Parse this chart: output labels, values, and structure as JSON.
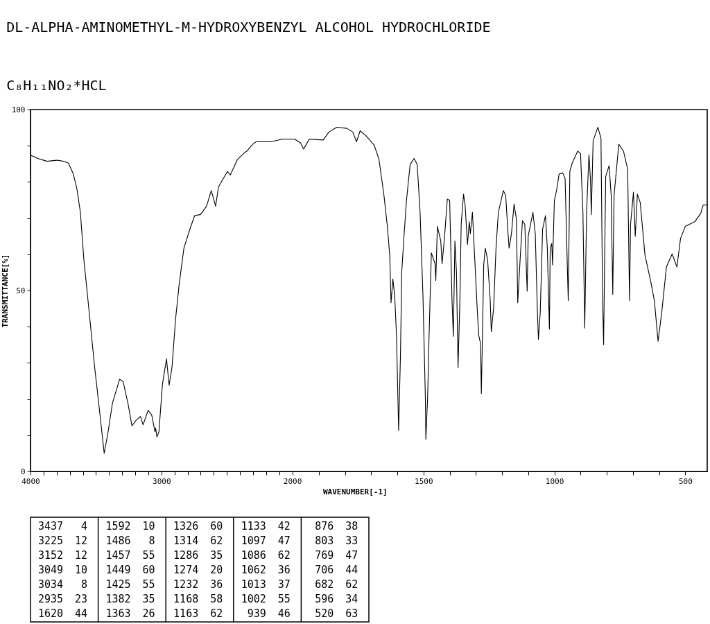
{
  "chart_data": [
    {
      "type": "line",
      "title": "DL-ALPHA-AMINOMETHYL-M-HYDROXYBENZYL ALCOHOL HYDROCHLORIDE",
      "subtitle": "C₈H₁₁NO₂*HCL",
      "ylabel": "TRANSMITTANCE[%]",
      "xlim": [
        4000,
        2000
      ],
      "ylim": [
        0,
        100
      ],
      "xticks": [
        4000,
        {
          "value": 3900,
          "label": null
        },
        {
          "value": 3800,
          "label": null
        },
        {
          "value": 3700,
          "label": null
        },
        {
          "value": 3600,
          "label": null
        },
        {
          "value": 3500,
          "label": null
        },
        {
          "value": 3400,
          "label": null
        },
        {
          "value": 3300,
          "label": null
        },
        {
          "value": 3200,
          "label": null
        },
        {
          "value": 3100,
          "label": null
        },
        3000,
        {
          "value": 2900,
          "label": null
        },
        {
          "value": 2800,
          "label": null
        },
        {
          "value": 2700,
          "label": null
        },
        {
          "value": 2600,
          "label": null
        },
        {
          "value": 2500,
          "label": null
        },
        {
          "value": 2400,
          "label": null
        },
        {
          "value": 2300,
          "label": null
        },
        {
          "value": 2200,
          "label": null
        },
        {
          "value": 2100,
          "label": null
        },
        2000
      ],
      "yticks": [
        0,
        {
          "value": 10,
          "label": null
        },
        {
          "value": 20,
          "label": null
        },
        {
          "value": 30,
          "label": null
        },
        {
          "value": 40,
          "label": null
        },
        50,
        {
          "value": 60,
          "label": null
        },
        {
          "value": 70,
          "label": null
        },
        {
          "value": 80,
          "label": null
        },
        {
          "value": 90,
          "label": null
        },
        100
      ],
      "grid": false,
      "series": [
        {
          "color": "#000000",
          "x": [
            4000,
            3946,
            3873,
            3800,
            3747,
            3710,
            3673,
            3646,
            3619,
            3592,
            3555,
            3510,
            3473,
            3437,
            3410,
            3374,
            3319,
            3292,
            3256,
            3225,
            3192,
            3161,
            3140,
            3101,
            3074,
            3049,
            3044,
            3034,
            3019,
            2992,
            2961,
            2941,
            2919,
            2892,
            2864,
            2828,
            2782,
            2746,
            2701,
            2655,
            2619,
            2601,
            2586,
            2564,
            2528,
            2495,
            2474,
            2419,
            2364,
            2348,
            2300,
            2276,
            2167,
            2076,
            2000
          ],
          "values": [
            87.4,
            86.5,
            85.7,
            86.0,
            85.7,
            85.2,
            82.2,
            78.2,
            71.6,
            58.4,
            45.2,
            28.8,
            16.9,
            5.0,
            10.3,
            18.9,
            25.5,
            24.8,
            18.9,
            12.6,
            14.2,
            15.2,
            12.9,
            16.9,
            15.6,
            11.0,
            12.0,
            9.5,
            10.9,
            24.1,
            31.1,
            23.8,
            28.8,
            42.0,
            51.8,
            61.7,
            67.0,
            70.7,
            71.0,
            73.3,
            77.6,
            75.3,
            73.3,
            78.6,
            80.9,
            82.9,
            81.9,
            86.2,
            88.1,
            88.5,
            90.5,
            91.1,
            91.1,
            91.8,
            91.8
          ]
        }
      ],
      "annotations": [
        "3437",
        "4",
        "3225",
        "12",
        "3152",
        "12",
        "3049",
        "10",
        "3034",
        "8",
        "2935",
        "23",
        "1620",
        "44",
        "1592",
        "10",
        "1486",
        "8",
        "1457",
        "55",
        "1449",
        "60",
        "1425",
        "55",
        "1382",
        "35",
        "1363",
        "26",
        "1326",
        "60",
        "1314",
        "62",
        "1286",
        "35",
        "1274",
        "20",
        "1232",
        "36",
        "1168",
        "58",
        "1163",
        "62",
        "1133",
        "42",
        "1097",
        "47",
        "1086",
        "62",
        "1062",
        "36",
        "1013",
        "37",
        "1002",
        "55",
        "939",
        "46",
        "876",
        "38",
        "803",
        "33",
        "769",
        "47",
        "706",
        "44",
        "682",
        "62",
        "596",
        "34",
        "520",
        "63"
      ]
    },
    {
      "type": "line",
      "xlabel": "WAVENUMBER[-1]",
      "xlim": [
        2000,
        415
      ],
      "ylim": [
        0,
        100
      ],
      "tick_labels": "x",
      "xticks": [
        {
          "value": 1900,
          "label": null
        },
        {
          "value": 1800,
          "label": null
        },
        {
          "value": 1700,
          "label": null
        },
        {
          "value": 1600,
          "label": null
        },
        1500,
        {
          "value": 1400,
          "label": null
        },
        {
          "value": 1300,
          "label": null
        },
        {
          "value": 1200,
          "label": null
        },
        {
          "value": 1100,
          "label": null
        },
        1000,
        {
          "value": 900,
          "label": null
        },
        {
          "value": 800,
          "label": null
        },
        {
          "value": 700,
          "label": null
        },
        {
          "value": 600,
          "label": null
        },
        500
      ],
      "grid": false,
      "series": [
        {
          "color": "#000000",
          "x": [
            2000,
            1992,
            1970,
            1958,
            1936,
            1883,
            1861,
            1831,
            1793,
            1770,
            1756,
            1742,
            1720,
            1688,
            1670,
            1651,
            1638,
            1629,
            1624,
            1617,
            1610,
            1603,
            1595,
            1588,
            1583,
            1576,
            1565,
            1551,
            1536,
            1524,
            1513,
            1502,
            1493,
            1491,
            1484,
            1479,
            1470,
            1456,
            1453,
            1447,
            1434,
            1429,
            1420,
            1409,
            1400,
            1391,
            1386,
            1380,
            1374,
            1368,
            1361,
            1356,
            1347,
            1341,
            1332,
            1325,
            1321,
            1313,
            1304,
            1295,
            1289,
            1282,
            1279,
            1274,
            1270,
            1264,
            1255,
            1245,
            1241,
            1232,
            1223,
            1214,
            1195,
            1186,
            1177,
            1173,
            1164,
            1154,
            1145,
            1140,
            1131,
            1122,
            1113,
            1104,
            1100,
            1091,
            1082,
            1073,
            1065,
            1061,
            1054,
            1045,
            1034,
            1027,
            1019,
            1016,
            1010,
            1007,
            1000,
            991,
            982,
            968,
            959,
            950,
            947,
            941,
            932,
            911,
            900,
            891,
            884,
            877,
            868,
            862,
            859,
            852,
            834,
            822,
            816,
            812,
            804,
            791,
            783,
            777,
            772,
            754,
            736,
            720,
            713,
            709,
            698,
            691,
            683,
            672,
            654,
            632,
            618,
            604,
            590,
            572,
            550,
            532,
            518,
            500,
            464,
            441,
            432,
            415
          ],
          "values": [
            91.8,
            91.8,
            90.8,
            89.1,
            91.8,
            91.6,
            93.8,
            95.1,
            94.8,
            93.8,
            91.1,
            94.1,
            92.8,
            90.1,
            86.2,
            76.3,
            67.7,
            59.8,
            46.6,
            53.2,
            48.5,
            37.3,
            11.3,
            32.0,
            55.2,
            63.4,
            74.9,
            84.8,
            86.5,
            84.8,
            71.6,
            48.5,
            20.8,
            8.9,
            20.8,
            36.7,
            60.4,
            57.4,
            52.8,
            67.7,
            63.7,
            57.4,
            64.4,
            75.3,
            74.9,
            47.2,
            37.3,
            63.7,
            55.1,
            28.7,
            47.2,
            68.3,
            76.6,
            73.6,
            62.7,
            69.0,
            65.7,
            71.6,
            58.4,
            45.2,
            37.6,
            35.3,
            21.5,
            40.6,
            57.1,
            61.7,
            58.4,
            47.2,
            38.6,
            45.2,
            61.7,
            71.6,
            77.6,
            76.3,
            65.7,
            61.7,
            65.7,
            73.9,
            69.7,
            46.6,
            58.4,
            69.3,
            68.3,
            49.8,
            65.0,
            68.3,
            71.6,
            65.7,
            44.6,
            36.5,
            43.9,
            67.0,
            70.7,
            61.7,
            39.3,
            61.7,
            63.0,
            57.1,
            74.9,
            77.9,
            82.2,
            82.5,
            80.9,
            55.1,
            47.2,
            82.9,
            85.2,
            88.5,
            87.8,
            71.6,
            39.6,
            71.6,
            87.5,
            80.5,
            71.0,
            91.4,
            95.1,
            92.1,
            48.5,
            35.0,
            81.5,
            84.5,
            76.3,
            48.9,
            76.3,
            90.4,
            88.5,
            83.5,
            47.2,
            68.3,
            77.2,
            65.0,
            76.6,
            74.3,
            59.8,
            52.5,
            47.2,
            36.0,
            43.9,
            56.5,
            60.1,
            56.5,
            64.4,
            67.7,
            69.0,
            71.3,
            73.6,
            73.6
          ]
        }
      ]
    }
  ]
}
